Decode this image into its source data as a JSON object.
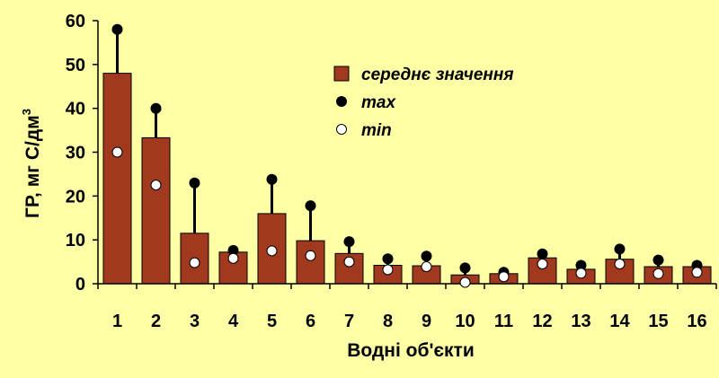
{
  "chart_data": {
    "type": "bar",
    "xlabel": "Водні об'єкти",
    "ylabel": "ГР, мг С/дм",
    "ylabel_superscript": "3",
    "ylim": [
      0,
      60
    ],
    "yticks": [
      0,
      10,
      20,
      30,
      40,
      50,
      60
    ],
    "grid": false,
    "legend_position": "top-right",
    "categories": [
      "1",
      "2",
      "3",
      "4",
      "5",
      "6",
      "7",
      "8",
      "9",
      "10",
      "11",
      "12",
      "13",
      "14",
      "15",
      "16"
    ],
    "series": [
      {
        "name": "середнє значення",
        "marker": "bar",
        "color": "#A0391D",
        "values": [
          48.0,
          33.3,
          11.5,
          7.2,
          16.0,
          9.8,
          6.9,
          4.2,
          4.1,
          2.0,
          2.3,
          5.9,
          3.3,
          5.6,
          3.9,
          3.9
        ]
      },
      {
        "name": "max",
        "marker": "black-dot",
        "color": "#000000",
        "values": [
          58.0,
          40.0,
          23.0,
          7.6,
          23.8,
          17.8,
          9.6,
          5.7,
          6.3,
          3.6,
          2.6,
          6.8,
          4.2,
          7.9,
          5.4,
          4.2
        ]
      },
      {
        "name": "min",
        "marker": "white-dot",
        "color": "#FFFFFF",
        "values": [
          30.0,
          22.5,
          4.8,
          5.8,
          7.5,
          6.4,
          5.0,
          3.2,
          3.9,
          0.3,
          1.6,
          4.5,
          2.4,
          4.5,
          2.3,
          2.6
        ]
      }
    ]
  }
}
